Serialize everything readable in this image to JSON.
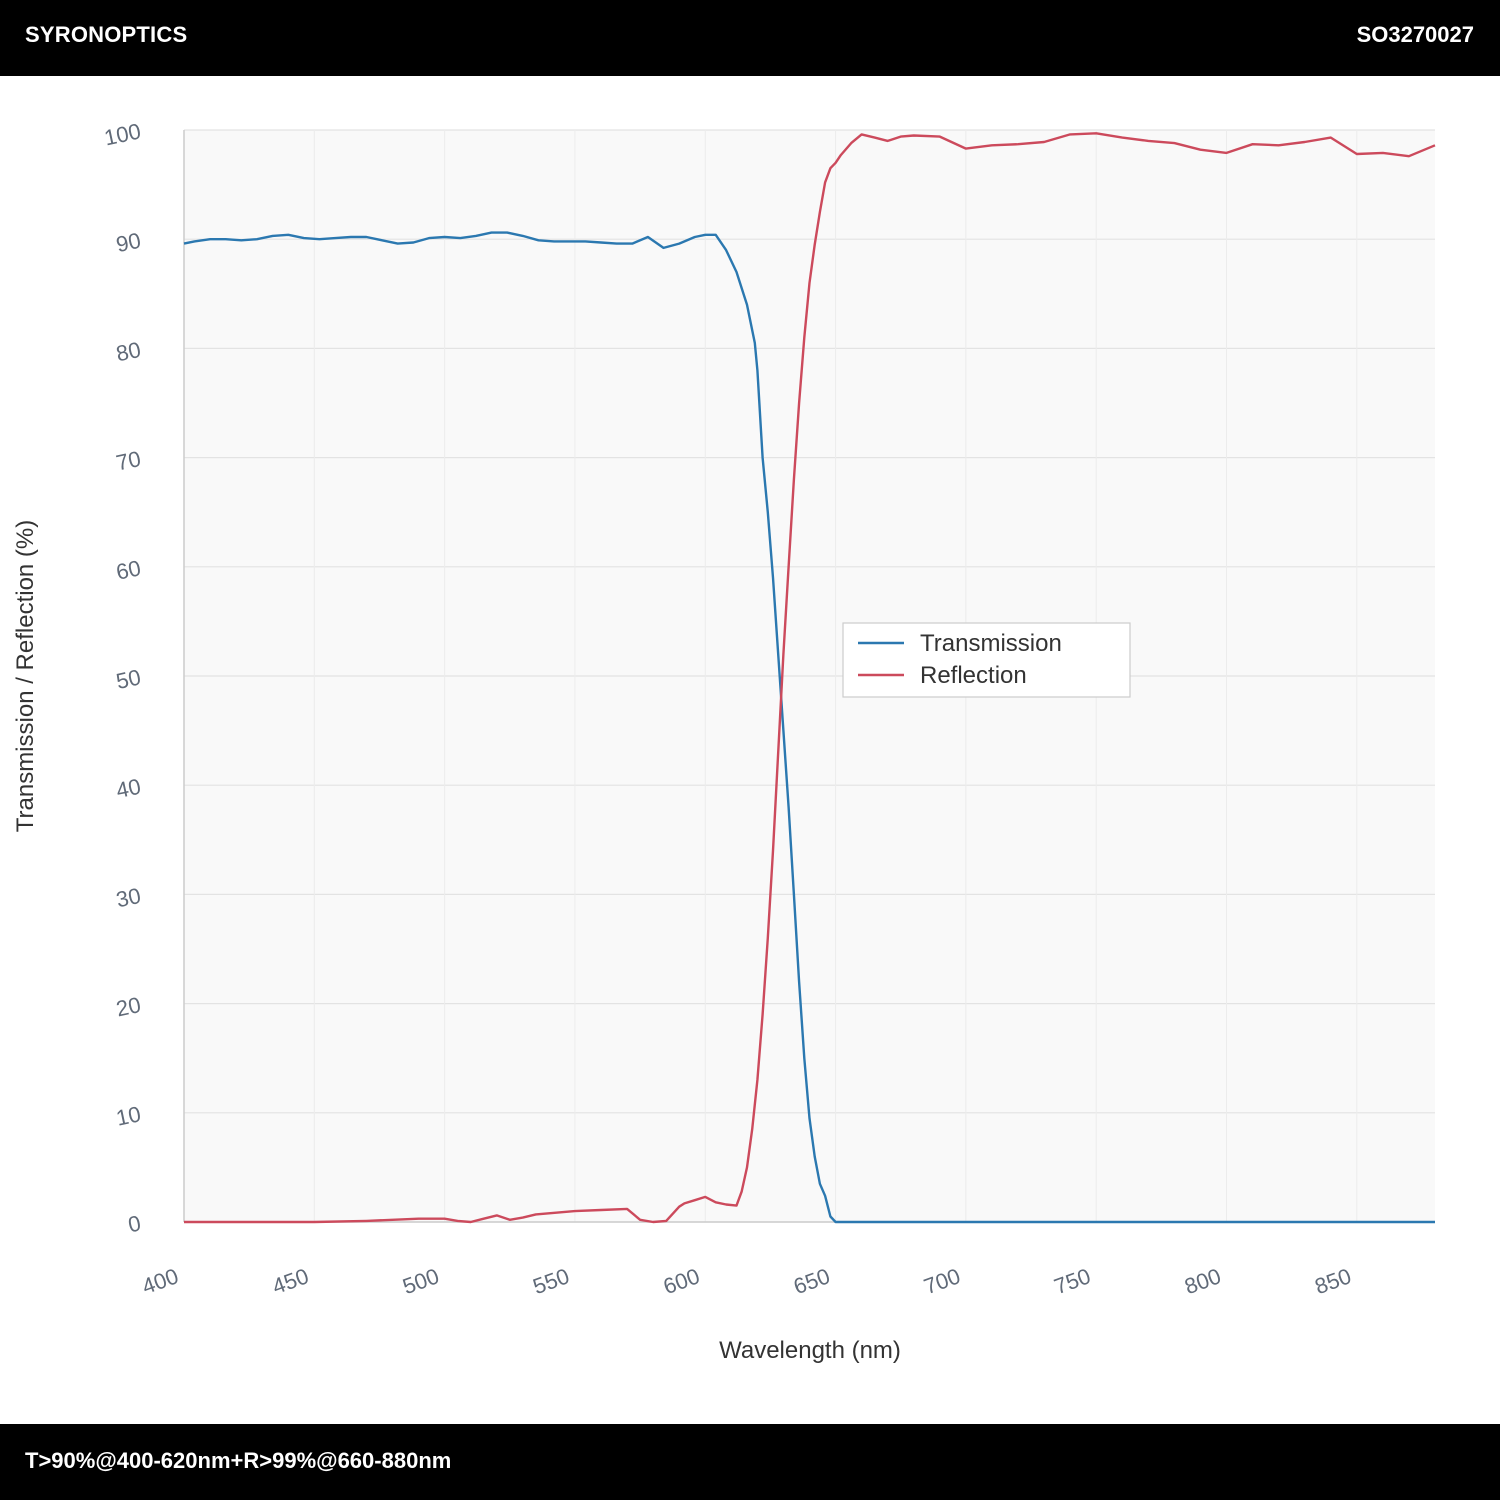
{
  "header": {
    "brand": "SYRONOPTICS",
    "part_number": "SO3270027"
  },
  "footer": {
    "spec": "T>90%@400-620nm+R>99%@660-880nm"
  },
  "chart_data": {
    "type": "line",
    "xlabel": "Wavelength (nm)",
    "ylabel": "Transmission / Reflection (%)",
    "xlim": [
      400,
      880
    ],
    "ylim": [
      0,
      100
    ],
    "xticks": [
      400,
      450,
      500,
      550,
      600,
      650,
      700,
      750,
      800,
      850
    ],
    "yticks": [
      0,
      10,
      20,
      30,
      40,
      50,
      60,
      70,
      80,
      90,
      100
    ],
    "grid": true,
    "legend_position": "center-right",
    "series": [
      {
        "name": "Transmission",
        "color": "#2b78b0",
        "x": [
          400,
          404,
          410,
          416,
          422,
          428,
          434,
          440,
          446,
          452,
          458,
          464,
          470,
          476,
          482,
          488,
          494,
          500,
          506,
          512,
          518,
          524,
          530,
          536,
          542,
          548,
          554,
          560,
          566,
          572,
          578,
          584,
          590,
          596,
          600,
          604,
          608,
          612,
          616,
          619,
          620,
          621,
          622,
          624,
          626,
          628,
          630,
          632,
          634,
          636,
          638,
          640,
          642,
          644,
          646,
          648,
          650,
          652,
          654,
          656,
          658,
          660,
          662,
          664,
          670,
          700,
          750,
          800,
          850,
          880
        ],
        "y": [
          89.6,
          89.8,
          90.0,
          90.0,
          89.9,
          90.0,
          90.3,
          90.4,
          90.1,
          90.0,
          90.1,
          90.2,
          90.2,
          89.9,
          89.6,
          89.7,
          90.1,
          90.2,
          90.1,
          90.3,
          90.6,
          90.6,
          90.3,
          89.9,
          89.8,
          89.8,
          89.8,
          89.7,
          89.6,
          89.6,
          90.2,
          89.2,
          89.6,
          90.2,
          90.4,
          90.4,
          89.0,
          87.0,
          84.0,
          80.5,
          78.0,
          74.0,
          70.0,
          65.0,
          59.0,
          52.0,
          45.0,
          38.0,
          30.0,
          22.0,
          15.0,
          9.5,
          6.0,
          3.5,
          2.4,
          0.5,
          0.0,
          0.0,
          0.0,
          0.0,
          0.0,
          0.0,
          0.0,
          0.0,
          0.0,
          0.0,
          0.0,
          0.0,
          0.0,
          0.0
        ]
      },
      {
        "name": "Reflection",
        "color": "#cc4a5c",
        "x": [
          400,
          450,
          470,
          490,
          500,
          505,
          510,
          515,
          520,
          525,
          530,
          535,
          540,
          550,
          560,
          570,
          575,
          580,
          585,
          590,
          592,
          596,
          600,
          604,
          608,
          612,
          614,
          616,
          618,
          620,
          622,
          624,
          626,
          628,
          630,
          632,
          634,
          636,
          638,
          640,
          642,
          644,
          646,
          648,
          650,
          652,
          656,
          660,
          665,
          670,
          675,
          680,
          690,
          700,
          710,
          720,
          730,
          740,
          750,
          760,
          770,
          780,
          790,
          800,
          810,
          820,
          830,
          840,
          850,
          860,
          870,
          880
        ],
        "y": [
          0.0,
          0.0,
          0.1,
          0.3,
          0.3,
          0.1,
          0.0,
          0.3,
          0.6,
          0.2,
          0.4,
          0.7,
          0.8,
          1.0,
          1.1,
          1.2,
          0.2,
          0.0,
          0.1,
          1.4,
          1.7,
          2.0,
          2.3,
          1.8,
          1.6,
          1.5,
          2.8,
          5.0,
          8.5,
          13.0,
          19.0,
          26.0,
          34.0,
          43.0,
          52.0,
          60.0,
          68.0,
          75.0,
          81.0,
          86.0,
          89.5,
          92.5,
          95.2,
          96.5,
          97.0,
          97.7,
          98.8,
          99.6,
          99.3,
          99.0,
          99.4,
          99.5,
          99.4,
          98.3,
          98.6,
          98.7,
          98.9,
          99.6,
          99.7,
          99.3,
          99.0,
          98.8,
          98.2,
          97.9,
          98.7,
          98.6,
          98.9,
          99.3,
          97.8,
          97.9,
          97.6,
          98.6
        ]
      }
    ]
  }
}
